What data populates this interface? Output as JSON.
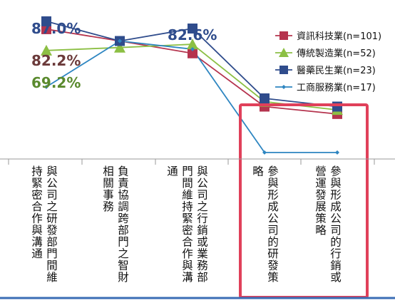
{
  "chart_data": {
    "type": "line",
    "title": "",
    "xlabel": "",
    "ylabel": "",
    "ylim": [
      0,
      100
    ],
    "grid": false,
    "legend_position": "top-right",
    "categories": [
      "與公司之研發部門間維持緊密合作與溝通",
      "負責協調跨部門之智財相關事務",
      "與公司之行銷或業務部門間維持緊密合作與溝通",
      "參與形成公司的研發策略",
      "參與形成公司的行銷或營運發展策略"
    ],
    "series": [
      {
        "name": "資訊科技業(n=101)",
        "color": "#b5344e",
        "marker": "square",
        "values": [
          82.2,
          75.0,
          67.5,
          35.0,
          30.5
        ]
      },
      {
        "name": "傳統製造業(n=52)",
        "color": "#8cbf44",
        "marker": "triangle",
        "values": [
          69.2,
          71.0,
          73.0,
          38.0,
          33.0
        ]
      },
      {
        "name": "醫藥民生業(n=23)",
        "color": "#2f4c8c",
        "marker": "square",
        "values": [
          87.0,
          75.0,
          82.6,
          40.0,
          35.0
        ]
      },
      {
        "name": "工商服務業(n=17)",
        "color": "#2e86c1",
        "marker": "diamond",
        "values": [
          47.0,
          75.0,
          70.0,
          7.0,
          7.0
        ]
      }
    ],
    "data_labels": [
      {
        "text": "87.0%",
        "color": "#2f4c8c"
      },
      {
        "text": "82.2%",
        "color": "#6b3a3a"
      },
      {
        "text": "69.2%",
        "color": "#5a8a2e"
      },
      {
        "text": "82.6%",
        "color": "#2f4c8c"
      }
    ],
    "highlight": {
      "color": "#e0405a",
      "categories": [
        3,
        4
      ]
    }
  }
}
